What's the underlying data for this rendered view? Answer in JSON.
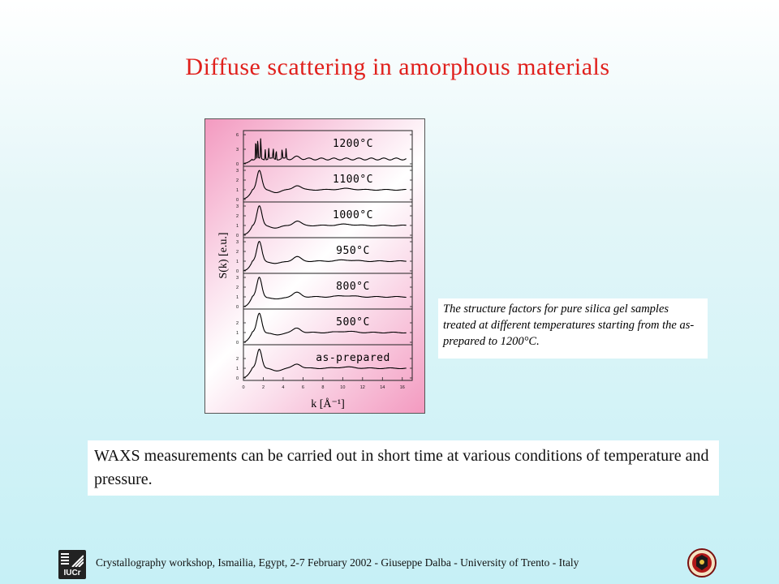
{
  "slide": {
    "title": "Diffuse scattering in amorphous materials",
    "caption": "The structure factors for pure silica gel samples treated at different temperatures starting from the as-prepared to 1200°C.",
    "note": "WAXS measurements can be carried out in short time at various conditions of temperature and pressure.",
    "footer": "Crystallography workshop, Ismailia, Egypt, 2-7 February  2002 - Giuseppe Dalba -  University of Trento - Italy",
    "logo_left_label": "IUCr"
  },
  "chart_data": {
    "type": "line",
    "xlabel": "k [Å⁻¹]",
    "ylabel": "S(k) [e.u.]",
    "xlim": [
      0,
      17
    ],
    "x_ticks": [
      0,
      2,
      4,
      6,
      8,
      10,
      12,
      14,
      16
    ],
    "series": [
      {
        "name": "1200°C",
        "ymax": 6,
        "y_ticks": [
          "0",
          "3",
          "6"
        ]
      },
      {
        "name": "1100°C",
        "ymax": 3,
        "y_ticks": [
          "0",
          "1",
          "2",
          "3"
        ]
      },
      {
        "name": "1000°C",
        "ymax": 3,
        "y_ticks": [
          "0",
          "1",
          "2",
          "3"
        ]
      },
      {
        "name": "950°C",
        "ymax": 3,
        "y_ticks": [
          "0",
          "1",
          "2",
          "3"
        ]
      },
      {
        "name": "800°C",
        "ymax": 3,
        "y_ticks": [
          "0",
          "1",
          "2",
          "3"
        ]
      },
      {
        "name": "500°C",
        "ymax": 3,
        "y_ticks": [
          "0",
          "1",
          "2"
        ]
      },
      {
        "name": "as-prepared",
        "ymax": 3,
        "y_ticks": [
          "0",
          "1",
          "2"
        ]
      }
    ],
    "curve_profile": {
      "baseline": 1.0,
      "peaks": [
        {
          "center": 1.6,
          "height": 2.0
        },
        {
          "center": 5.4,
          "height": 0.45
        },
        {
          "center": 10.3,
          "height": 0.12
        }
      ],
      "sharp_peaks_1200": [
        1.25,
        1.45,
        1.75,
        2.2,
        2.55,
        3.0,
        3.3,
        3.9,
        4.3
      ]
    }
  }
}
